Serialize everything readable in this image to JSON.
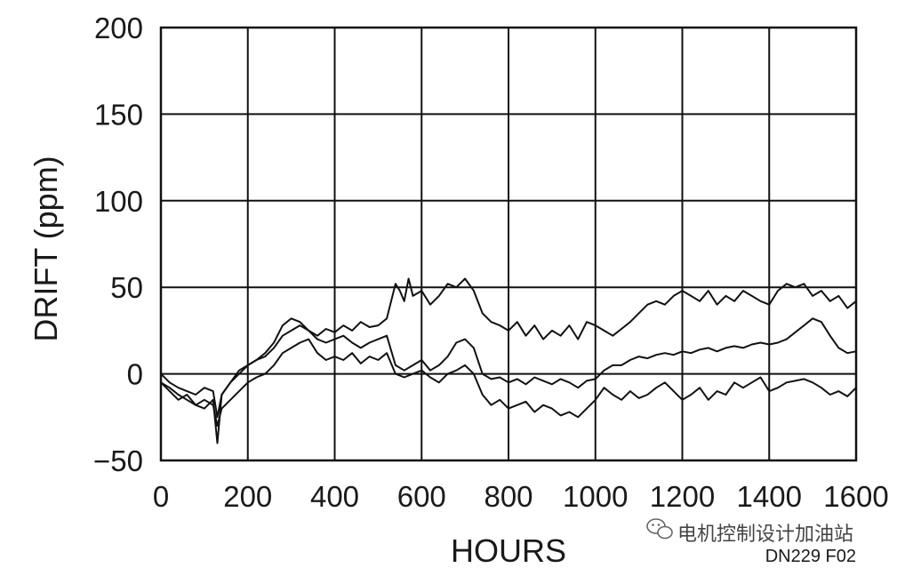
{
  "chart_data": {
    "type": "line",
    "title": "",
    "xlabel": "HOURS",
    "ylabel": "DRIFT (ppm)",
    "xlim": [
      0,
      1600
    ],
    "ylim": [
      -50,
      200
    ],
    "x_ticks": [
      0,
      200,
      400,
      600,
      800,
      1000,
      1200,
      1400,
      1600
    ],
    "y_ticks": [
      -50,
      0,
      50,
      100,
      150,
      200
    ],
    "x_tick_labels": [
      "0",
      "200",
      "400",
      "600",
      "800",
      "1000",
      "1200",
      "1400",
      "1600"
    ],
    "y_tick_labels": [
      "−50",
      "0",
      "50",
      "100",
      "150",
      "200"
    ],
    "grid": true,
    "line_color": "#111111",
    "series": [
      {
        "x": [
          0,
          20,
          40,
          60,
          80,
          100,
          120,
          130,
          140,
          160,
          180,
          200,
          220,
          240,
          260,
          280,
          300,
          320,
          340,
          360,
          380,
          400,
          420,
          440,
          460,
          480,
          500,
          520,
          540,
          550,
          560,
          570,
          580,
          600,
          620,
          640,
          660,
          680,
          700,
          720,
          740,
          760,
          780,
          800,
          820,
          840,
          860,
          880,
          900,
          920,
          940,
          960,
          980,
          1000,
          1020,
          1040,
          1060,
          1080,
          1100,
          1120,
          1140,
          1160,
          1180,
          1200,
          1220,
          1240,
          1260,
          1280,
          1300,
          1320,
          1340,
          1360,
          1380,
          1400,
          1420,
          1440,
          1460,
          1480,
          1500,
          1520,
          1540,
          1560,
          1580,
          1600
        ],
        "y": [
          -5,
          -10,
          -15,
          -12,
          -18,
          -20,
          -15,
          -40,
          -12,
          -5,
          2,
          5,
          8,
          12,
          18,
          28,
          32,
          30,
          25,
          22,
          26,
          24,
          28,
          25,
          30,
          27,
          28,
          32,
          52,
          48,
          42,
          55,
          45,
          48,
          40,
          45,
          52,
          50,
          55,
          48,
          35,
          30,
          28,
          25,
          30,
          22,
          28,
          20,
          25,
          22,
          28,
          20,
          30,
          28,
          25,
          22,
          26,
          30,
          35,
          40,
          42,
          40,
          45,
          48,
          45,
          42,
          48,
          40,
          45,
          42,
          48,
          45,
          42,
          40,
          48,
          52,
          50,
          52,
          45,
          48,
          42,
          45,
          38,
          42
        ]
      },
      {
        "x": [
          0,
          20,
          40,
          60,
          80,
          100,
          120,
          130,
          140,
          160,
          180,
          200,
          220,
          240,
          260,
          280,
          300,
          320,
          340,
          360,
          380,
          400,
          420,
          440,
          460,
          480,
          500,
          520,
          540,
          560,
          580,
          600,
          620,
          640,
          660,
          680,
          700,
          720,
          740,
          760,
          780,
          800,
          820,
          840,
          860,
          880,
          900,
          920,
          940,
          960,
          980,
          1000,
          1020,
          1040,
          1060,
          1080,
          1100,
          1120,
          1140,
          1160,
          1180,
          1200,
          1220,
          1240,
          1260,
          1280,
          1300,
          1320,
          1340,
          1360,
          1380,
          1400,
          1420,
          1440,
          1460,
          1480,
          1500,
          1520,
          1540,
          1560,
          1580,
          1600
        ],
        "y": [
          0,
          -5,
          -8,
          -10,
          -12,
          -8,
          -10,
          -25,
          -12,
          -5,
          0,
          5,
          8,
          10,
          15,
          22,
          25,
          28,
          25,
          20,
          18,
          20,
          22,
          18,
          15,
          18,
          20,
          22,
          5,
          2,
          5,
          8,
          2,
          5,
          10,
          18,
          20,
          15,
          0,
          -3,
          -2,
          -5,
          -3,
          -6,
          -2,
          -4,
          -6,
          -3,
          -5,
          -8,
          -4,
          -3,
          2,
          5,
          5,
          8,
          10,
          9,
          11,
          12,
          11,
          13,
          12,
          14,
          15,
          13,
          15,
          16,
          15,
          17,
          18,
          17,
          18,
          20,
          24,
          28,
          32,
          30,
          22,
          15,
          12,
          13
        ]
      },
      {
        "x": [
          0,
          20,
          40,
          60,
          80,
          100,
          120,
          130,
          140,
          160,
          180,
          200,
          220,
          240,
          260,
          280,
          300,
          320,
          340,
          360,
          380,
          400,
          420,
          440,
          460,
          480,
          500,
          520,
          540,
          560,
          580,
          600,
          620,
          640,
          660,
          680,
          700,
          720,
          740,
          760,
          780,
          800,
          820,
          840,
          860,
          880,
          900,
          920,
          940,
          960,
          980,
          1000,
          1020,
          1040,
          1060,
          1080,
          1100,
          1120,
          1140,
          1160,
          1180,
          1200,
          1220,
          1240,
          1260,
          1280,
          1300,
          1320,
          1340,
          1360,
          1380,
          1400,
          1420,
          1440,
          1460,
          1480,
          1500,
          1520,
          1540,
          1560,
          1580,
          1600
        ],
        "y": [
          -5,
          -8,
          -12,
          -15,
          -18,
          -15,
          -18,
          -30,
          -20,
          -15,
          -10,
          -5,
          -2,
          0,
          5,
          12,
          15,
          18,
          20,
          12,
          8,
          10,
          8,
          12,
          6,
          10,
          8,
          12,
          0,
          -2,
          0,
          2,
          -2,
          -5,
          0,
          2,
          5,
          0,
          -12,
          -18,
          -15,
          -20,
          -18,
          -16,
          -22,
          -18,
          -20,
          -24,
          -22,
          -25,
          -20,
          -15,
          -8,
          -12,
          -15,
          -10,
          -14,
          -12,
          -8,
          -5,
          -10,
          -15,
          -12,
          -8,
          -15,
          -10,
          -12,
          -5,
          -8,
          -5,
          -2,
          -10,
          -8,
          -5,
          -4,
          -3,
          -5,
          -8,
          -12,
          -10,
          -13,
          -8
        ]
      }
    ]
  },
  "figure_id": "DN229 F02",
  "watermark": {
    "icon": "wechat-icon",
    "text": "电机控制设计加油站"
  }
}
